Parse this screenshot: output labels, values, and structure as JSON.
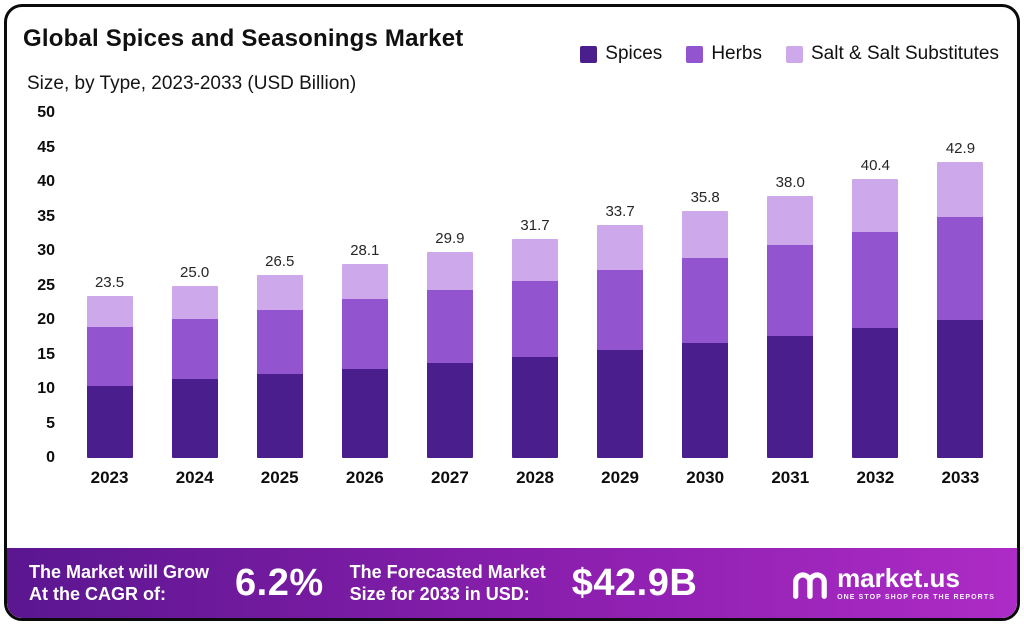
{
  "header": {
    "title": "Global Spices and Seasonings Market",
    "subtitle": "Size, by Type, 2023-2033 (USD Billion)"
  },
  "legend": [
    {
      "label": "Spices",
      "color": "#4b1e8e"
    },
    {
      "label": "Herbs",
      "color": "#9254cf"
    },
    {
      "label": "Salt & Salt Substitutes",
      "color": "#cda8ea"
    }
  ],
  "chart_data": {
    "type": "bar",
    "stacked": true,
    "title": "Global Spices and Seasonings Market",
    "subtitle": "Size, by Type, 2023-2033 (USD Billion)",
    "xlabel": "",
    "ylabel": "",
    "ylim": [
      0,
      50
    ],
    "yticks": [
      0,
      5,
      10,
      15,
      20,
      25,
      30,
      35,
      40,
      45,
      50
    ],
    "grid": false,
    "legend_position": "top-right",
    "categories": [
      "2023",
      "2024",
      "2025",
      "2026",
      "2027",
      "2028",
      "2029",
      "2030",
      "2031",
      "2032",
      "2033"
    ],
    "series": [
      {
        "name": "Spices",
        "color": "#4b1e8e",
        "values": [
          10.5,
          11.4,
          12.1,
          12.9,
          13.8,
          14.7,
          15.6,
          16.6,
          17.7,
          18.8,
          20.0
        ]
      },
      {
        "name": "Herbs",
        "color": "#9254cf",
        "values": [
          8.5,
          8.7,
          9.4,
          10.1,
          10.6,
          11.0,
          11.7,
          12.4,
          13.1,
          14.0,
          14.9
        ]
      },
      {
        "name": "Salt & Salt Substitutes",
        "color": "#cda8ea",
        "values": [
          4.5,
          4.9,
          5.0,
          5.1,
          5.5,
          6.0,
          6.4,
          6.8,
          7.2,
          7.6,
          8.0
        ]
      }
    ],
    "totals": [
      23.5,
      25.0,
      26.5,
      28.1,
      29.9,
      31.7,
      33.7,
      35.8,
      38.0,
      40.4,
      42.9
    ],
    "total_labels": [
      "23.5",
      "25.0",
      "26.5",
      "28.1",
      "29.9",
      "31.7",
      "33.7",
      "35.8",
      "38.0",
      "40.4",
      "42.9"
    ]
  },
  "banner": {
    "cagr_label": "The Market will Grow\nAt the CAGR of:",
    "cagr_value": "6.2%",
    "forecast_label": "The Forecasted Market\nSize for 2033 in USD:",
    "forecast_value": "$42.9B",
    "brand": "market.us",
    "brand_tagline": "ONE STOP SHOP FOR THE REPORTS"
  }
}
